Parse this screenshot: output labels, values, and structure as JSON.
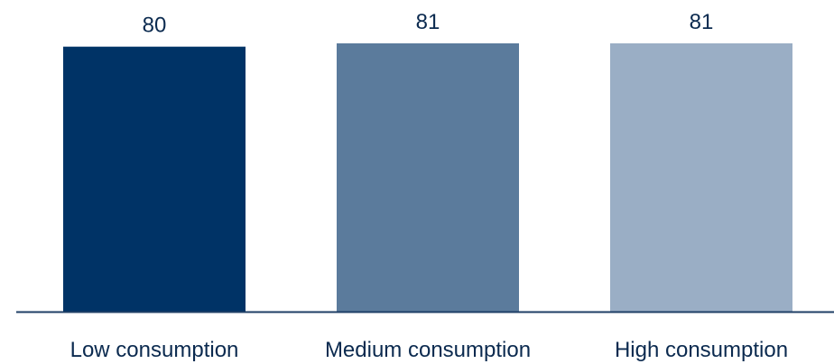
{
  "chart_data": {
    "type": "bar",
    "categories": [
      "Low consumption",
      "Medium consumption",
      "High consumption"
    ],
    "values": [
      80,
      81,
      81
    ],
    "data_labels": [
      "80",
      "81",
      "81"
    ],
    "title": "",
    "xlabel": "",
    "ylabel": "",
    "ylim": [
      0,
      81
    ],
    "grid": false,
    "legend": "none",
    "colors": [
      "#003366",
      "#5b7b9c",
      "#9aaec5"
    ],
    "axis_color": "#1f3f66",
    "label_color": "#0b2a4f"
  }
}
